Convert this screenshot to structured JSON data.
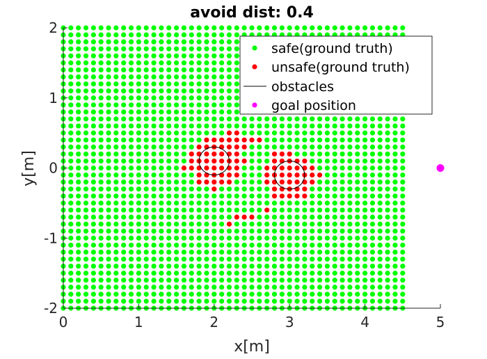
{
  "chart_data": {
    "type": "scatter",
    "title": "avoid dist: 0.4",
    "xlabel": "x[m]",
    "ylabel": "y[m]",
    "xlim": [
      0,
      5
    ],
    "ylim": [
      -2,
      2
    ],
    "xticks": [
      "0",
      "1",
      "2",
      "3",
      "4",
      "5"
    ],
    "yticks": [
      "-2",
      "-1",
      "0",
      "1",
      "2"
    ],
    "grid": false,
    "legend_position": "top-right",
    "colors": {
      "safe": "#00ff00",
      "unsafe": "#ff0000",
      "goal": "#ff00ff",
      "obstacle": "#000000"
    },
    "grid_points": {
      "x_range": [
        0,
        4.5
      ],
      "y_range": [
        -2,
        2
      ],
      "spacing": 0.1
    },
    "series": [
      {
        "name": "safe(ground truth)",
        "kind": "points",
        "note": "all grid points not listed as unsafe"
      },
      {
        "name": "unsafe(ground truth)",
        "kind": "points",
        "points": [
          [
            2.2,
            0.5
          ],
          [
            2.3,
            0.5
          ],
          [
            1.9,
            0.4
          ],
          [
            2.0,
            0.4
          ],
          [
            2.1,
            0.4
          ],
          [
            2.2,
            0.4
          ],
          [
            2.3,
            0.4
          ],
          [
            1.8,
            0.3
          ],
          [
            1.9,
            0.3
          ],
          [
            2.0,
            0.3
          ],
          [
            2.1,
            0.3
          ],
          [
            2.2,
            0.3
          ],
          [
            2.3,
            0.3
          ],
          [
            1.7,
            0.2
          ],
          [
            1.8,
            0.2
          ],
          [
            1.9,
            0.2
          ],
          [
            2.0,
            0.2
          ],
          [
            2.1,
            0.2
          ],
          [
            2.2,
            0.2
          ],
          [
            2.3,
            0.2
          ],
          [
            1.7,
            0.1
          ],
          [
            1.8,
            0.1
          ],
          [
            1.9,
            0.1
          ],
          [
            2.0,
            0.1
          ],
          [
            2.1,
            0.1
          ],
          [
            2.2,
            0.1
          ],
          [
            2.3,
            0.1
          ],
          [
            2.4,
            0.1
          ],
          [
            1.6,
            0.0
          ],
          [
            1.7,
            0.0
          ],
          [
            1.8,
            0.0
          ],
          [
            1.9,
            0.0
          ],
          [
            2.0,
            0.0
          ],
          [
            2.1,
            0.0
          ],
          [
            2.2,
            0.0
          ],
          [
            2.3,
            0.0
          ],
          [
            1.8,
            -0.1
          ],
          [
            1.9,
            -0.1
          ],
          [
            2.0,
            -0.1
          ],
          [
            2.1,
            -0.1
          ],
          [
            2.2,
            -0.1
          ],
          [
            2.3,
            -0.1
          ],
          [
            1.8,
            -0.2
          ],
          [
            1.9,
            -0.2
          ],
          [
            2.0,
            -0.2
          ],
          [
            2.1,
            -0.2
          ],
          [
            2.2,
            -0.2
          ],
          [
            2.0,
            -0.3
          ],
          [
            2.4,
            0.4
          ],
          [
            2.5,
            0.4
          ],
          [
            2.6,
            0.4
          ],
          [
            2.4,
            0.3
          ],
          [
            2.8,
            0.2
          ],
          [
            2.9,
            0.2
          ],
          [
            3.0,
            0.2
          ],
          [
            2.8,
            0.1
          ],
          [
            2.9,
            0.1
          ],
          [
            3.0,
            0.1
          ],
          [
            3.1,
            0.1
          ],
          [
            3.2,
            0.1
          ],
          [
            2.7,
            0.0
          ],
          [
            2.8,
            0.0
          ],
          [
            2.9,
            0.0
          ],
          [
            3.0,
            0.0
          ],
          [
            3.1,
            0.0
          ],
          [
            3.2,
            0.0
          ],
          [
            3.3,
            0.0
          ],
          [
            2.7,
            -0.1
          ],
          [
            2.8,
            -0.1
          ],
          [
            2.9,
            -0.1
          ],
          [
            3.0,
            -0.1
          ],
          [
            3.1,
            -0.1
          ],
          [
            3.2,
            -0.1
          ],
          [
            3.3,
            -0.1
          ],
          [
            3.4,
            -0.1
          ],
          [
            2.7,
            -0.2
          ],
          [
            2.8,
            -0.2
          ],
          [
            2.9,
            -0.2
          ],
          [
            3.0,
            -0.2
          ],
          [
            3.1,
            -0.2
          ],
          [
            3.2,
            -0.2
          ],
          [
            3.3,
            -0.2
          ],
          [
            2.8,
            -0.3
          ],
          [
            2.9,
            -0.3
          ],
          [
            3.0,
            -0.3
          ],
          [
            3.1,
            -0.3
          ],
          [
            3.2,
            -0.3
          ],
          [
            2.8,
            -0.4
          ],
          [
            2.9,
            -0.4
          ],
          [
            3.0,
            -0.4
          ],
          [
            3.1,
            -0.4
          ],
          [
            3.2,
            -0.4
          ],
          [
            2.7,
            -0.6
          ],
          [
            2.3,
            -0.7
          ],
          [
            2.4,
            -0.7
          ],
          [
            2.5,
            -0.7
          ],
          [
            2.2,
            -0.8
          ]
        ]
      },
      {
        "name": "obstacles",
        "kind": "circles",
        "circles": [
          {
            "cx": 2.0,
            "cy": 0.1,
            "r": 0.2
          },
          {
            "cx": 3.0,
            "cy": -0.1,
            "r": 0.2
          }
        ]
      },
      {
        "name": "goal position",
        "kind": "points",
        "points": [
          [
            5.0,
            0.0
          ]
        ]
      }
    ]
  }
}
